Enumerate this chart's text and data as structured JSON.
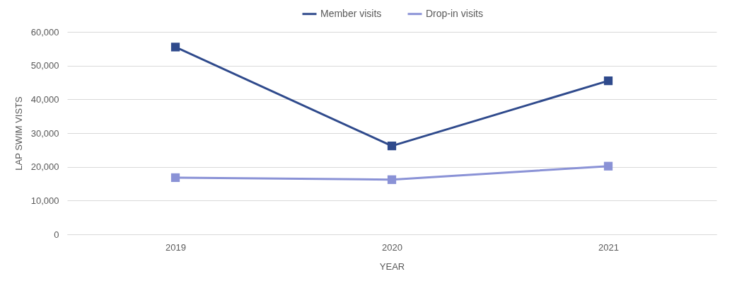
{
  "chart_data": {
    "type": "line",
    "xlabel": "YEAR",
    "ylabel": "LAP SWIM VISTS",
    "categories": [
      "2019",
      "2020",
      "2021"
    ],
    "series": [
      {
        "name": "Member visits",
        "color": "#2f4a8c",
        "values": [
          55500,
          26200,
          45500
        ]
      },
      {
        "name": "Drop-in visits",
        "color": "#8a92d6",
        "values": [
          16800,
          16200,
          20200
        ]
      }
    ],
    "ylim": [
      0,
      60000
    ],
    "yticks": [
      0,
      {
        "value": 10000,
        "label": "10,000"
      },
      {
        "value": 20000,
        "label": "20,000"
      },
      {
        "value": 30000,
        "label": "30,000"
      },
      {
        "value": 40000,
        "label": "40,000"
      },
      {
        "value": 50000,
        "label": "50,000"
      },
      {
        "value": 60000,
        "label": "60,000"
      }
    ],
    "grid": "y",
    "legend": "top",
    "marker": "square",
    "line_style": "solid"
  }
}
